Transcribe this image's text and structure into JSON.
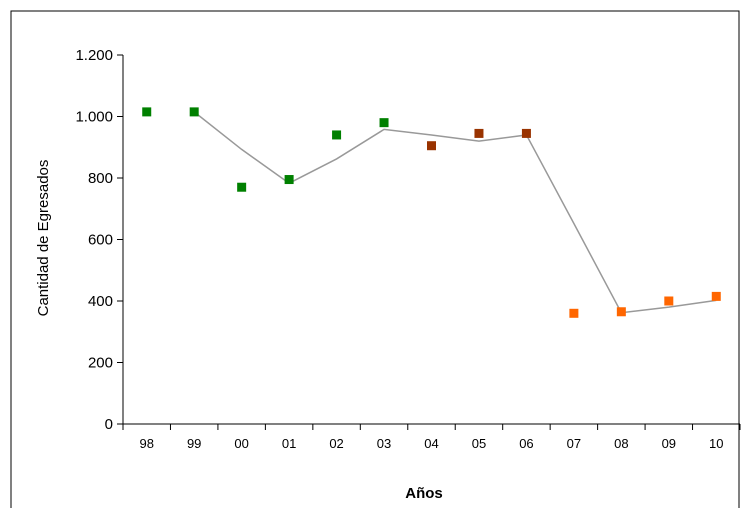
{
  "chart_data": {
    "type": "scatter",
    "xlabel": "Años",
    "ylabel": "Cantidad de Egresados",
    "ylim": [
      0,
      1200
    ],
    "yticks": [
      0,
      200,
      400,
      600,
      800,
      1000,
      1200
    ],
    "ytick_labels": [
      "0",
      "200",
      "400",
      "600",
      "800",
      "1.000",
      "1.200"
    ],
    "categories": [
      "98",
      "99",
      "00",
      "01",
      "02",
      "03",
      "04",
      "05",
      "06",
      "07",
      "08",
      "09",
      "10"
    ],
    "grid": false,
    "legend": "none",
    "series": [
      {
        "color": "#008000",
        "marker": "square",
        "points": [
          {
            "x": "98",
            "y": 1015
          },
          {
            "x": "99",
            "y": 1015
          },
          {
            "x": "00",
            "y": 770
          },
          {
            "x": "01",
            "y": 795
          },
          {
            "x": "02",
            "y": 940
          },
          {
            "x": "03",
            "y": 980
          }
        ]
      },
      {
        "color": "#993300",
        "marker": "square",
        "points": [
          {
            "x": "04",
            "y": 905
          },
          {
            "x": "05",
            "y": 945
          },
          {
            "x": "06",
            "y": 945
          }
        ]
      },
      {
        "color": "#FF6600",
        "marker": "square",
        "points": [
          {
            "x": "07",
            "y": 360
          },
          {
            "x": "08",
            "y": 365
          },
          {
            "x": "09",
            "y": 400
          },
          {
            "x": "10",
            "y": 415
          }
        ]
      },
      {
        "color": "#999999",
        "type": "line",
        "points": [
          {
            "x": "99",
            "y": 1015
          },
          {
            "x": "00",
            "y": 893
          },
          {
            "x": "01",
            "y": 783
          },
          {
            "x": "02",
            "y": 862
          },
          {
            "x": "03",
            "y": 958
          },
          {
            "x": "04",
            "y": 940
          },
          {
            "x": "05",
            "y": 920
          },
          {
            "x": "06",
            "y": 940
          },
          {
            "x": "07",
            "y": 652
          },
          {
            "x": "08",
            "y": 362
          },
          {
            "x": "09",
            "y": 380
          },
          {
            "x": "10",
            "y": 402
          }
        ]
      }
    ]
  }
}
